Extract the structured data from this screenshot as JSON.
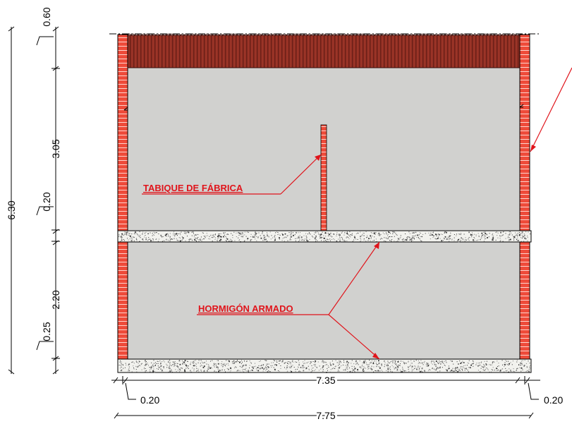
{
  "dimensions": {
    "total_height": "6.30",
    "roof": "0.60",
    "upper_height": "3.05",
    "slab": "0.20",
    "lower_height": "2.20",
    "foundation": "0.25",
    "inner_span": "7.35",
    "wall_left": "0.20",
    "wall_right": "0.20",
    "total_width": "7.75"
  },
  "labels": {
    "partition": "TABIQUE DE FÁBRICA",
    "concrete": "HORMIGÓN ARMADO"
  },
  "colors": {
    "brick": "#ee4b3a",
    "brick_joint": "#ffd3cc",
    "room_fill": "#d1d1cf",
    "concrete_fill": "#f2f2ee",
    "roof_tile": "#8f2f24",
    "annotation": "#e0141b"
  }
}
